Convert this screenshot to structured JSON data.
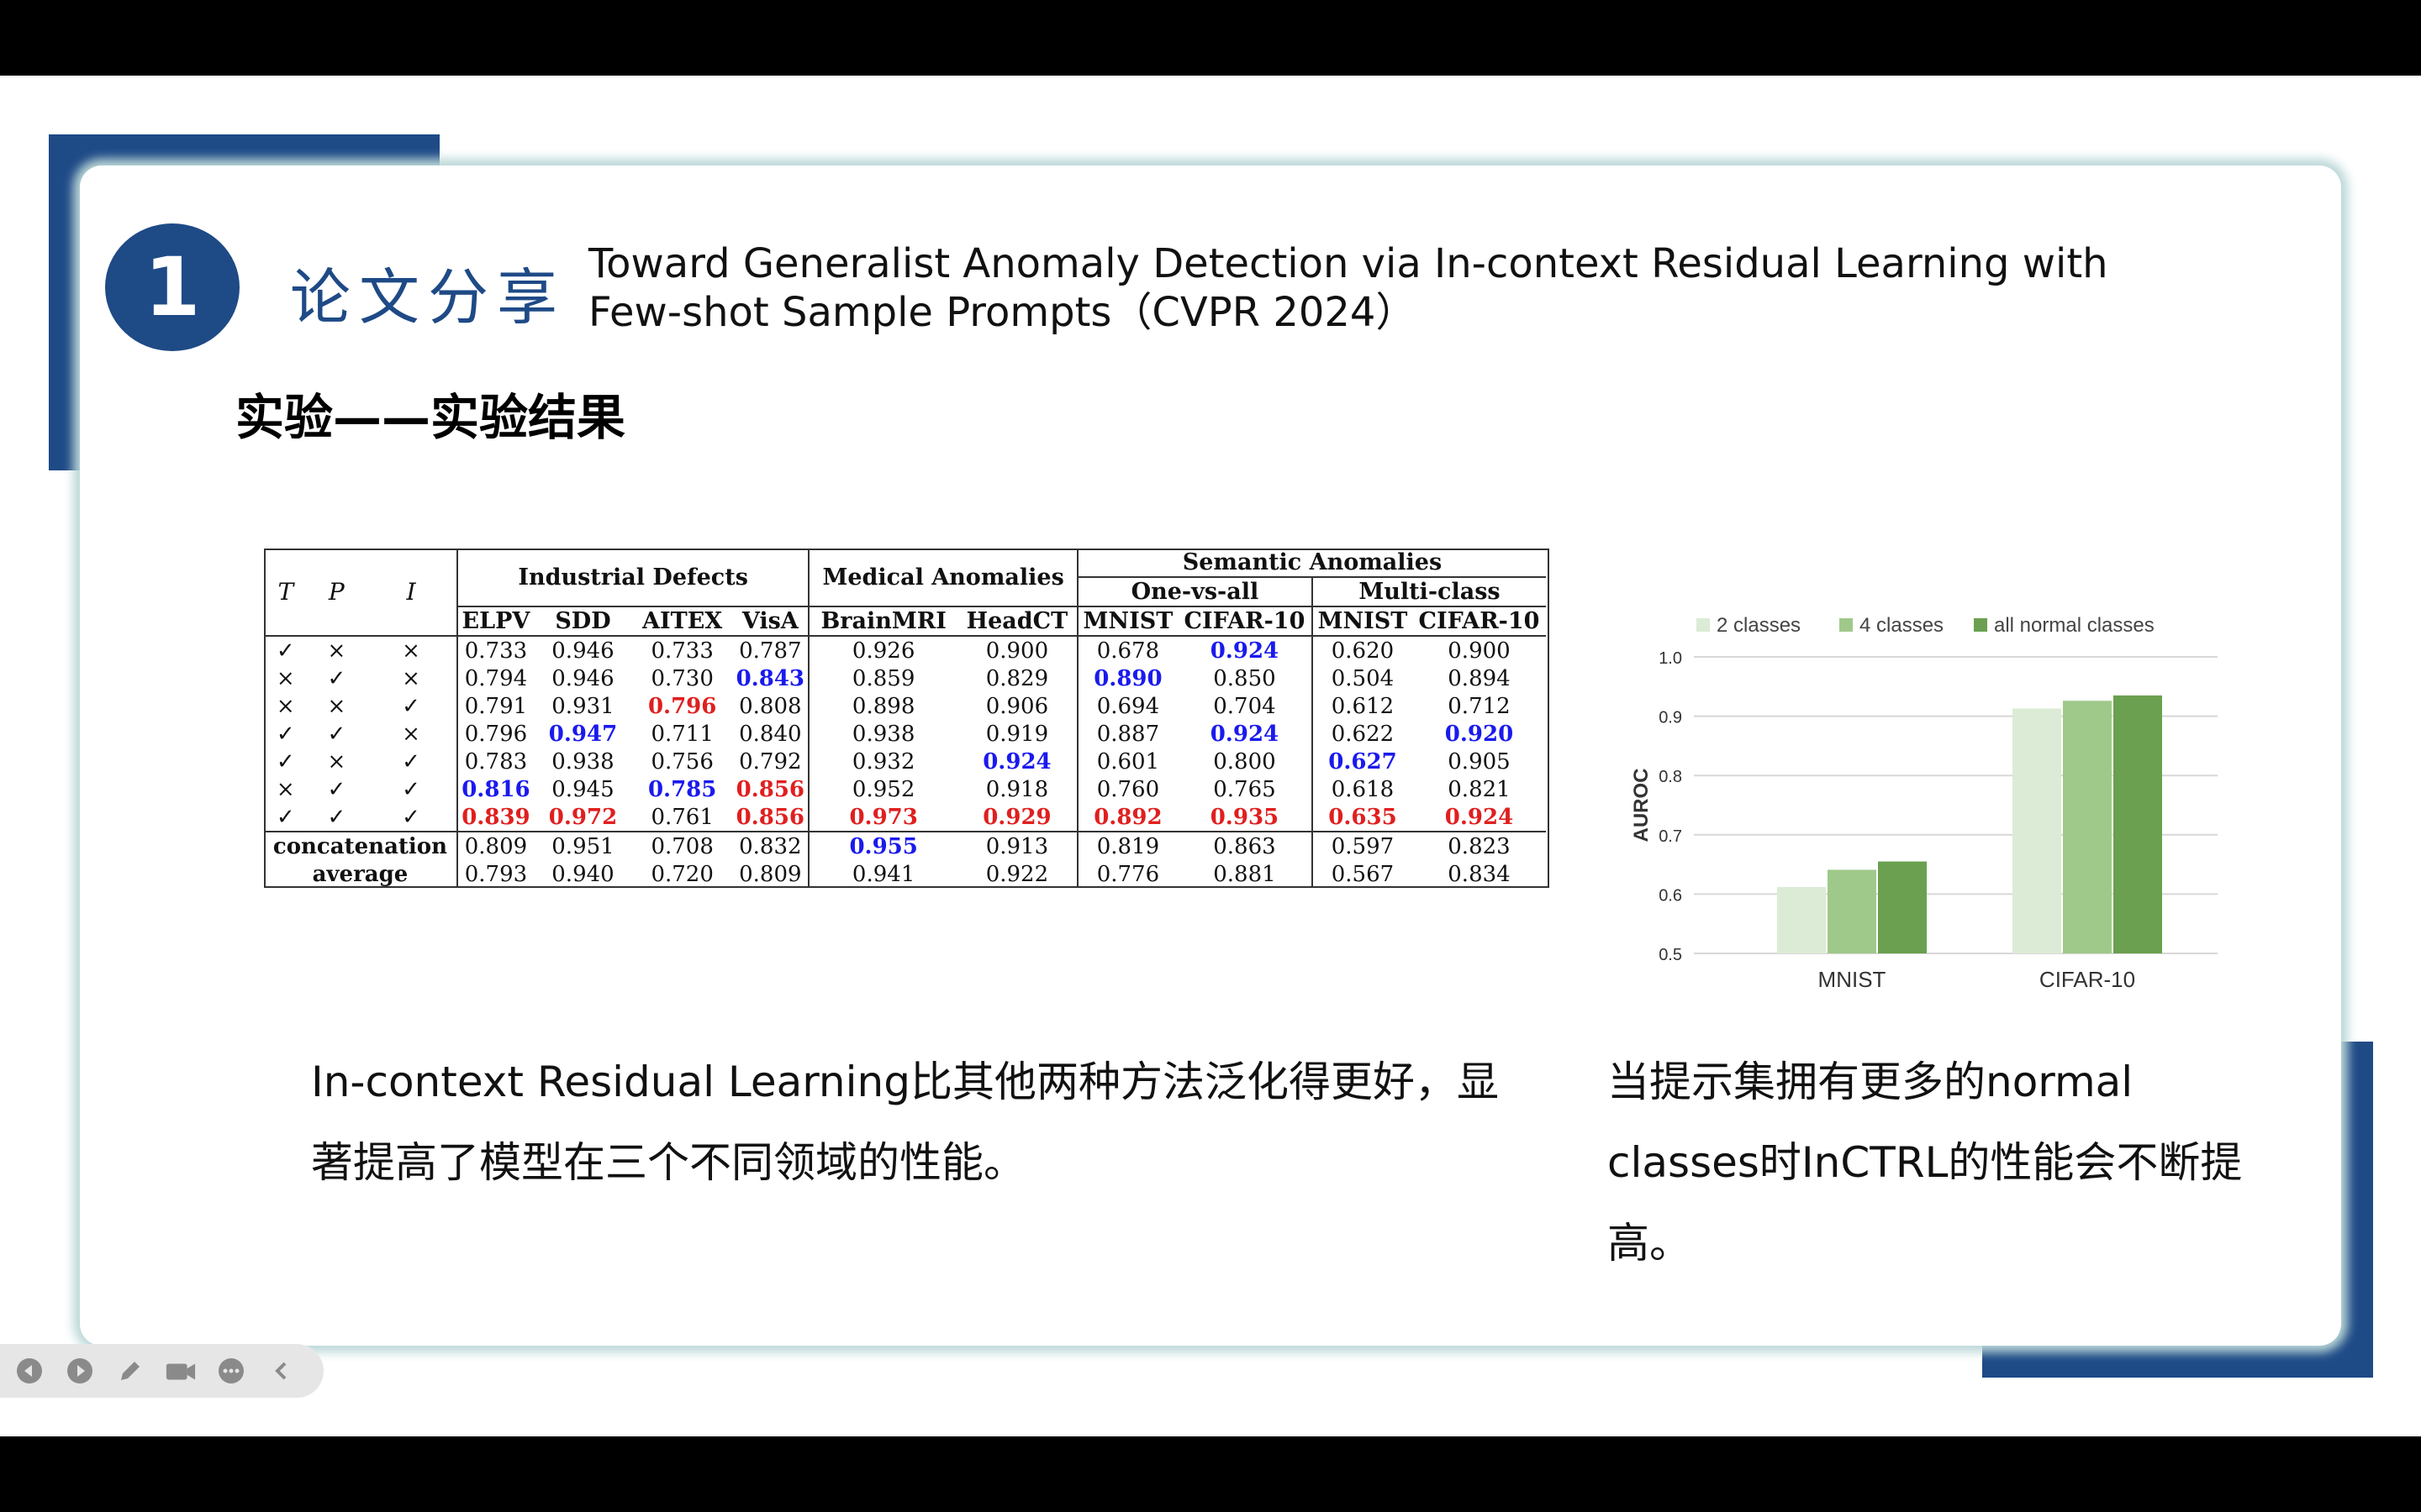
{
  "slide": {
    "number": "1",
    "section_title": "论文分享",
    "paper_title_line1": "Toward Generalist Anomaly Detection via In-context Residual Learning with",
    "paper_title_line2": "Few-shot Sample Prompts（CVPR 2024）",
    "subtitle": "实验——实验结果"
  },
  "table": {
    "groups": {
      "industrial": "Industrial Defects",
      "medical": "Medical Anomalies",
      "semantic": "Semantic Anomalies",
      "one_vs_all": "One-vs-all",
      "multi_class": "Multi-class"
    },
    "tpi": [
      "T",
      "P",
      "I"
    ],
    "columns": [
      "ELPV",
      "SDD",
      "AITEX",
      "VisA",
      "BrainMRI",
      "HeadCT",
      "MNIST",
      "CIFAR-10",
      "MNIST",
      "CIFAR-10"
    ],
    "check_rows": [
      {
        "t": "✓",
        "p": "×",
        "i": "×",
        "v": [
          "0.733",
          "0.946",
          "0.733",
          "0.787",
          "0.926",
          "0.900",
          "0.678",
          "0.924",
          "0.620",
          "0.900"
        ],
        "hl": {
          "7": "blue"
        }
      },
      {
        "t": "×",
        "p": "✓",
        "i": "×",
        "v": [
          "0.794",
          "0.946",
          "0.730",
          "0.843",
          "0.859",
          "0.829",
          "0.890",
          "0.850",
          "0.504",
          "0.894"
        ],
        "hl": {
          "3": "blue",
          "6": "blue"
        }
      },
      {
        "t": "×",
        "p": "×",
        "i": "✓",
        "v": [
          "0.791",
          "0.931",
          "0.796",
          "0.808",
          "0.898",
          "0.906",
          "0.694",
          "0.704",
          "0.612",
          "0.712"
        ],
        "hl": {
          "2": "red"
        }
      },
      {
        "t": "✓",
        "p": "✓",
        "i": "×",
        "v": [
          "0.796",
          "0.947",
          "0.711",
          "0.840",
          "0.938",
          "0.919",
          "0.887",
          "0.924",
          "0.622",
          "0.920"
        ],
        "hl": {
          "1": "blue",
          "7": "blue",
          "9": "blue"
        }
      },
      {
        "t": "✓",
        "p": "×",
        "i": "✓",
        "v": [
          "0.783",
          "0.938",
          "0.756",
          "0.792",
          "0.932",
          "0.924",
          "0.601",
          "0.800",
          "0.627",
          "0.905"
        ],
        "hl": {
          "5": "blue",
          "8": "blue"
        }
      },
      {
        "t": "×",
        "p": "✓",
        "i": "✓",
        "v": [
          "0.816",
          "0.945",
          "0.785",
          "0.856",
          "0.952",
          "0.918",
          "0.760",
          "0.765",
          "0.618",
          "0.821"
        ],
        "hl": {
          "0": "blue",
          "2": "blue",
          "3": "red"
        }
      },
      {
        "t": "✓",
        "p": "✓",
        "i": "✓",
        "v": [
          "0.839",
          "0.972",
          "0.761",
          "0.856",
          "0.973",
          "0.929",
          "0.892",
          "0.935",
          "0.635",
          "0.924"
        ],
        "hl": {
          "0": "red",
          "1": "red",
          "3": "red",
          "4": "red",
          "5": "red",
          "6": "red",
          "7": "red",
          "8": "red",
          "9": "red"
        }
      }
    ],
    "label_rows": [
      {
        "label": "concatenation",
        "v": [
          "0.809",
          "0.951",
          "0.708",
          "0.832",
          "0.955",
          "0.913",
          "0.819",
          "0.863",
          "0.597",
          "0.823"
        ],
        "hl": {
          "4": "blue"
        }
      },
      {
        "label": "average",
        "v": [
          "0.793",
          "0.940",
          "0.720",
          "0.809",
          "0.941",
          "0.922",
          "0.776",
          "0.881",
          "0.567",
          "0.834"
        ],
        "hl": {}
      }
    ]
  },
  "chart_data": {
    "type": "bar",
    "categories": [
      "MNIST",
      "CIFAR-10"
    ],
    "series": [
      {
        "name": "2 classes",
        "values": [
          0.612,
          0.913
        ],
        "color": "#dcebd5"
      },
      {
        "name": "4 classes",
        "values": [
          0.641,
          0.926
        ],
        "color": "#9fc98a"
      },
      {
        "name": "all normal classes",
        "values": [
          0.655,
          0.935
        ],
        "color": "#6aa04f"
      }
    ],
    "xlabel": "",
    "ylabel": "AUROC",
    "ylim": [
      0.5,
      1.0
    ],
    "yticks": [
      "0.5",
      "0.6",
      "0.7",
      "0.8",
      "0.9",
      "1.0"
    ],
    "grid": true,
    "legend_position": "top"
  },
  "captions": {
    "left": "In-context Residual Learning比其他两种方法泛化得更好，显著提高了模型在三个不同领域的性能。",
    "right": "当提示集拥有更多的normal classes时InCTRL的性能会不断提高。"
  },
  "toolbar": {
    "icons": [
      "prev-icon",
      "next-icon",
      "pen-icon",
      "camera-icon",
      "more-icon",
      "collapse-icon"
    ]
  }
}
